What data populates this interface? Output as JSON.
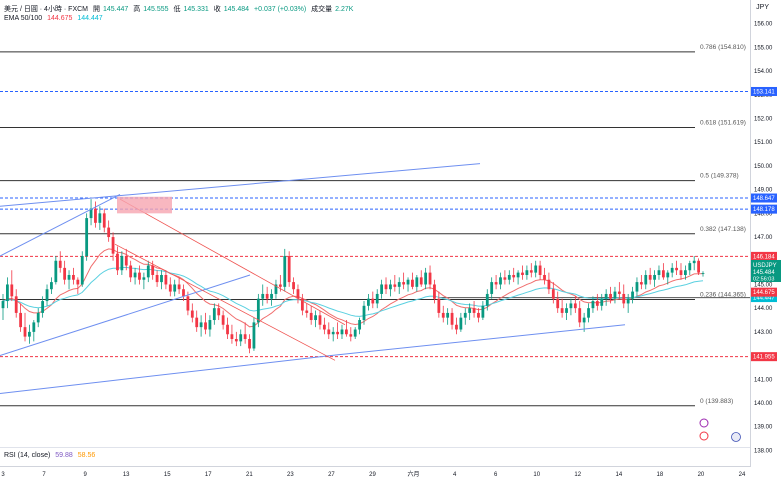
{
  "header": {
    "symbol": "美元 / 日圓 · 4小時 · FXCM",
    "open_label": "開",
    "open_value": "145.447",
    "high_label": "高",
    "high_value": "145.555",
    "low_label": "低",
    "low_value": "145.331",
    "close_label": "收",
    "close_value": "145.484",
    "change": "+0.037 (+0.03%)",
    "volume_label": "成交量",
    "volume_value": "2.27K",
    "ema_label": "EMA 50/100",
    "ema_fast": "144.675",
    "ema_slow": "144.447",
    "rsi_label": "RSI (14, close)",
    "rsi_value": "59.88",
    "rsi_avg": "58.56"
  },
  "currency": "JPY",
  "colors": {
    "up": "#089981",
    "down": "#f23645",
    "ema_fast": "#f06e6e",
    "ema_slow": "#5ad0e0",
    "trendline": "#6e8ff0",
    "fib": "#333333",
    "dashed_blue": "#2962ff",
    "dashed_red": "#f23645"
  },
  "chart_data": {
    "type": "candlestick",
    "y_range": [
      137.3,
      157.0
    ],
    "y_ticks": [
      156.0,
      155.0,
      154.0,
      153.0,
      152.0,
      151.0,
      150.0,
      149.0,
      148.0,
      147.0,
      146.0,
      145.0,
      144.0,
      143.0,
      142.0,
      141.0,
      140.0,
      139.0,
      138.0
    ],
    "x_ticks": [
      "3",
      "7",
      "9",
      "13",
      "15",
      "17",
      "21",
      "23",
      "27",
      "29",
      "六月",
      "4",
      "6",
      "10",
      "12",
      "14",
      "18",
      "20",
      "24"
    ],
    "fib_levels": [
      {
        "label": "0.786 (154.810)",
        "value": 154.81
      },
      {
        "label": "0.618 (151.619)",
        "value": 151.619
      },
      {
        "label": "0.5 (149.378)",
        "value": 149.378
      },
      {
        "label": "0.382 (147.138)",
        "value": 147.138
      },
      {
        "label": "0.236 (144.365)",
        "value": 144.365
      },
      {
        "label": "0 (139.883)",
        "value": 139.883
      }
    ],
    "hlines": [
      {
        "value": 153.141,
        "label": "153.141",
        "style": "dashed",
        "color": "blue"
      },
      {
        "value": 148.647,
        "label": "148.647",
        "style": "dashed",
        "color": "blue"
      },
      {
        "value": 148.178,
        "label": "148.178",
        "style": "dashed",
        "color": "blue"
      },
      {
        "value": 146.184,
        "label": "146.184",
        "style": "dashed",
        "color": "red"
      },
      {
        "value": 144.447,
        "label": "144.447",
        "style": "solid",
        "color": "cyan"
      },
      {
        "value": 141.955,
        "label": "141.955",
        "style": "dashed",
        "color": "red"
      }
    ],
    "price_tags": [
      {
        "label": "USDJPY",
        "value": "145.484",
        "sub": "02:56:03",
        "color": "green"
      },
      {
        "label": "",
        "value": "144.675",
        "color": "red"
      },
      {
        "label": "",
        "value": "144.447",
        "color": "cyan"
      }
    ],
    "candles": [
      [
        144.0,
        144.6,
        143.5,
        144.3
      ],
      [
        144.3,
        145.3,
        144.0,
        145.0
      ],
      [
        145.0,
        145.6,
        144.3,
        144.5
      ],
      [
        144.5,
        144.8,
        143.6,
        143.8
      ],
      [
        143.8,
        144.2,
        143.0,
        143.2
      ],
      [
        143.2,
        143.8,
        142.6,
        142.8
      ],
      [
        142.8,
        143.3,
        142.5,
        143.0
      ],
      [
        143.0,
        143.5,
        142.6,
        143.4
      ],
      [
        143.4,
        144.0,
        143.2,
        143.8
      ],
      [
        143.8,
        144.5,
        143.6,
        144.3
      ],
      [
        144.3,
        145.0,
        144.1,
        144.8
      ],
      [
        144.8,
        145.3,
        144.6,
        145.1
      ],
      [
        145.1,
        146.2,
        145.0,
        146.0
      ],
      [
        146.0,
        146.4,
        145.5,
        145.7
      ],
      [
        145.7,
        146.0,
        145.0,
        145.2
      ],
      [
        145.2,
        145.6,
        144.8,
        145.4
      ],
      [
        145.4,
        145.7,
        145.0,
        145.2
      ],
      [
        145.2,
        145.3,
        144.6,
        145.0
      ],
      [
        145.0,
        146.4,
        144.9,
        146.2
      ],
      [
        146.2,
        148.0,
        146.0,
        147.8
      ],
      [
        147.8,
        148.6,
        147.5,
        148.2
      ],
      [
        148.2,
        148.5,
        147.4,
        147.6
      ],
      [
        147.6,
        148.3,
        147.3,
        148.0
      ],
      [
        148.0,
        148.2,
        147.2,
        147.4
      ],
      [
        147.4,
        147.7,
        146.8,
        147.0
      ],
      [
        147.0,
        147.2,
        146.0,
        146.3
      ],
      [
        146.3,
        146.6,
        145.4,
        145.6
      ],
      [
        145.6,
        146.4,
        145.4,
        146.2
      ],
      [
        146.2,
        146.5,
        145.6,
        145.8
      ],
      [
        145.8,
        146.0,
        145.1,
        145.3
      ],
      [
        145.3,
        145.7,
        145.0,
        145.5
      ],
      [
        145.5,
        145.8,
        145.0,
        145.2
      ],
      [
        145.2,
        145.5,
        144.8,
        145.3
      ],
      [
        145.3,
        146.0,
        145.1,
        145.8
      ],
      [
        145.8,
        146.0,
        145.2,
        145.4
      ],
      [
        145.4,
        145.6,
        144.9,
        145.1
      ],
      [
        145.1,
        145.6,
        144.8,
        145.4
      ],
      [
        145.4,
        145.6,
        144.8,
        145.0
      ],
      [
        145.0,
        145.3,
        144.5,
        144.7
      ],
      [
        144.7,
        145.2,
        144.5,
        145.0
      ],
      [
        145.0,
        145.3,
        144.6,
        144.8
      ],
      [
        144.8,
        145.0,
        144.3,
        144.5
      ],
      [
        144.5,
        144.7,
        143.7,
        143.9
      ],
      [
        143.9,
        144.2,
        143.4,
        143.6
      ],
      [
        143.6,
        143.9,
        143.0,
        143.2
      ],
      [
        143.2,
        143.7,
        142.8,
        143.4
      ],
      [
        143.4,
        143.8,
        142.9,
        143.1
      ],
      [
        143.1,
        143.7,
        142.8,
        143.5
      ],
      [
        143.5,
        144.2,
        143.3,
        144.0
      ],
      [
        144.0,
        144.2,
        143.5,
        143.7
      ],
      [
        143.7,
        143.9,
        143.1,
        143.3
      ],
      [
        143.3,
        143.6,
        142.7,
        142.9
      ],
      [
        142.9,
        143.3,
        142.5,
        142.7
      ],
      [
        142.7,
        143.0,
        142.4,
        142.6
      ],
      [
        142.6,
        143.1,
        142.4,
        142.9
      ],
      [
        142.9,
        143.4,
        142.5,
        142.7
      ],
      [
        142.7,
        142.9,
        142.1,
        142.3
      ],
      [
        142.3,
        143.6,
        142.2,
        143.4
      ],
      [
        143.4,
        144.6,
        143.2,
        144.4
      ],
      [
        144.4,
        145.0,
        144.1,
        144.6
      ],
      [
        144.6,
        144.9,
        144.2,
        144.4
      ],
      [
        144.4,
        144.8,
        144.1,
        144.6
      ],
      [
        144.6,
        145.2,
        144.4,
        145.0
      ],
      [
        145.0,
        145.4,
        144.7,
        144.9
      ],
      [
        144.9,
        146.5,
        144.7,
        146.2
      ],
      [
        146.2,
        146.4,
        144.9,
        145.1
      ],
      [
        145.1,
        145.3,
        144.6,
        144.8
      ],
      [
        144.8,
        145.0,
        144.2,
        144.4
      ],
      [
        144.4,
        144.6,
        143.7,
        143.9
      ],
      [
        143.9,
        144.2,
        143.6,
        143.8
      ],
      [
        143.8,
        144.1,
        143.3,
        143.5
      ],
      [
        143.5,
        143.9,
        143.2,
        143.7
      ],
      [
        143.7,
        143.9,
        143.1,
        143.3
      ],
      [
        143.3,
        143.6,
        142.9,
        143.1
      ],
      [
        143.1,
        143.4,
        142.7,
        142.9
      ],
      [
        142.9,
        143.2,
        142.6,
        143.0
      ],
      [
        143.0,
        143.4,
        142.7,
        142.9
      ],
      [
        142.9,
        143.3,
        142.7,
        143.1
      ],
      [
        143.1,
        143.5,
        142.8,
        142.9
      ],
      [
        142.9,
        143.2,
        142.6,
        142.8
      ],
      [
        142.8,
        143.2,
        142.7,
        143.1
      ],
      [
        143.1,
        143.6,
        142.9,
        143.5
      ],
      [
        143.5,
        144.3,
        143.3,
        144.1
      ],
      [
        144.1,
        144.6,
        143.9,
        144.4
      ],
      [
        144.4,
        144.7,
        144.0,
        144.2
      ],
      [
        144.2,
        144.8,
        144.0,
        144.6
      ],
      [
        144.6,
        145.2,
        144.4,
        145.0
      ],
      [
        145.0,
        145.3,
        144.6,
        144.8
      ],
      [
        144.8,
        145.2,
        144.5,
        145.0
      ],
      [
        145.0,
        145.4,
        144.7,
        144.9
      ],
      [
        144.9,
        145.3,
        144.6,
        145.1
      ],
      [
        145.1,
        145.5,
        144.8,
        145.0
      ],
      [
        145.0,
        145.3,
        144.7,
        145.2
      ],
      [
        145.2,
        145.5,
        144.8,
        144.9
      ],
      [
        144.9,
        145.4,
        144.7,
        145.3
      ],
      [
        145.3,
        145.6,
        144.9,
        145.0
      ],
      [
        145.0,
        145.7,
        144.8,
        145.5
      ],
      [
        145.5,
        145.8,
        144.8,
        145.0
      ],
      [
        145.0,
        145.2,
        144.2,
        144.4
      ],
      [
        144.4,
        144.7,
        143.6,
        143.8
      ],
      [
        143.8,
        144.1,
        143.4,
        143.6
      ],
      [
        143.6,
        144.0,
        143.3,
        143.8
      ],
      [
        143.8,
        144.0,
        143.1,
        143.3
      ],
      [
        143.3,
        143.6,
        142.9,
        143.1
      ],
      [
        143.1,
        143.8,
        143.0,
        143.6
      ],
      [
        143.6,
        144.0,
        143.3,
        143.8
      ],
      [
        143.8,
        144.2,
        143.5,
        144.0
      ],
      [
        144.0,
        144.3,
        143.6,
        143.8
      ],
      [
        143.8,
        144.0,
        143.4,
        143.6
      ],
      [
        143.6,
        144.3,
        143.5,
        144.1
      ],
      [
        144.1,
        144.8,
        143.9,
        144.6
      ],
      [
        144.6,
        145.3,
        144.4,
        145.1
      ],
      [
        145.1,
        145.4,
        144.8,
        145.0
      ],
      [
        145.0,
        145.5,
        144.8,
        145.3
      ],
      [
        145.3,
        145.6,
        145.0,
        145.2
      ],
      [
        145.2,
        145.6,
        145.0,
        145.4
      ],
      [
        145.4,
        145.7,
        145.1,
        145.3
      ],
      [
        145.3,
        145.6,
        145.0,
        145.5
      ],
      [
        145.5,
        145.8,
        145.2,
        145.4
      ],
      [
        145.4,
        145.8,
        145.2,
        145.6
      ],
      [
        145.6,
        145.9,
        145.3,
        145.5
      ],
      [
        145.5,
        146.0,
        145.3,
        145.8
      ],
      [
        145.8,
        146.0,
        145.2,
        145.4
      ],
      [
        145.4,
        145.7,
        145.0,
        145.2
      ],
      [
        145.2,
        145.5,
        144.6,
        144.8
      ],
      [
        144.8,
        145.1,
        144.2,
        144.4
      ],
      [
        144.4,
        144.7,
        143.8,
        144.0
      ],
      [
        144.0,
        144.4,
        143.6,
        143.8
      ],
      [
        143.8,
        144.2,
        143.5,
        144.0
      ],
      [
        144.0,
        144.4,
        143.7,
        144.2
      ],
      [
        144.2,
        144.5,
        143.8,
        144.0
      ],
      [
        144.0,
        144.3,
        143.2,
        143.4
      ],
      [
        143.4,
        143.8,
        143.0,
        143.6
      ],
      [
        143.6,
        144.2,
        143.4,
        144.0
      ],
      [
        144.0,
        144.5,
        143.8,
        144.3
      ],
      [
        144.3,
        144.6,
        143.9,
        144.1
      ],
      [
        144.1,
        144.6,
        143.9,
        144.4
      ],
      [
        144.4,
        144.8,
        144.1,
        144.6
      ],
      [
        144.6,
        144.9,
        144.2,
        144.4
      ],
      [
        144.4,
        144.9,
        144.2,
        144.7
      ],
      [
        144.7,
        145.1,
        144.4,
        144.6
      ],
      [
        144.6,
        145.0,
        144.0,
        144.2
      ],
      [
        144.2,
        144.6,
        143.8,
        144.4
      ],
      [
        144.4,
        144.9,
        144.2,
        144.7
      ],
      [
        144.7,
        145.3,
        144.5,
        145.1
      ],
      [
        145.1,
        145.4,
        144.8,
        145.0
      ],
      [
        145.0,
        145.6,
        144.8,
        145.4
      ],
      [
        145.4,
        145.7,
        145.0,
        145.2
      ],
      [
        145.2,
        145.6,
        144.9,
        145.4
      ],
      [
        145.4,
        145.8,
        145.2,
        145.6
      ],
      [
        145.6,
        145.9,
        145.2,
        145.3
      ],
      [
        145.3,
        145.6,
        145.0,
        145.5
      ],
      [
        145.5,
        145.9,
        145.3,
        145.7
      ],
      [
        145.7,
        146.0,
        145.4,
        145.6
      ],
      [
        145.6,
        145.9,
        145.2,
        145.4
      ],
      [
        145.4,
        145.8,
        145.2,
        145.6
      ],
      [
        145.6,
        146.0,
        145.4,
        145.9
      ],
      [
        145.9,
        146.2,
        145.6,
        146.0
      ],
      [
        146.0,
        146.1,
        145.4,
        145.5
      ],
      [
        145.45,
        145.56,
        145.33,
        145.48
      ]
    ]
  }
}
